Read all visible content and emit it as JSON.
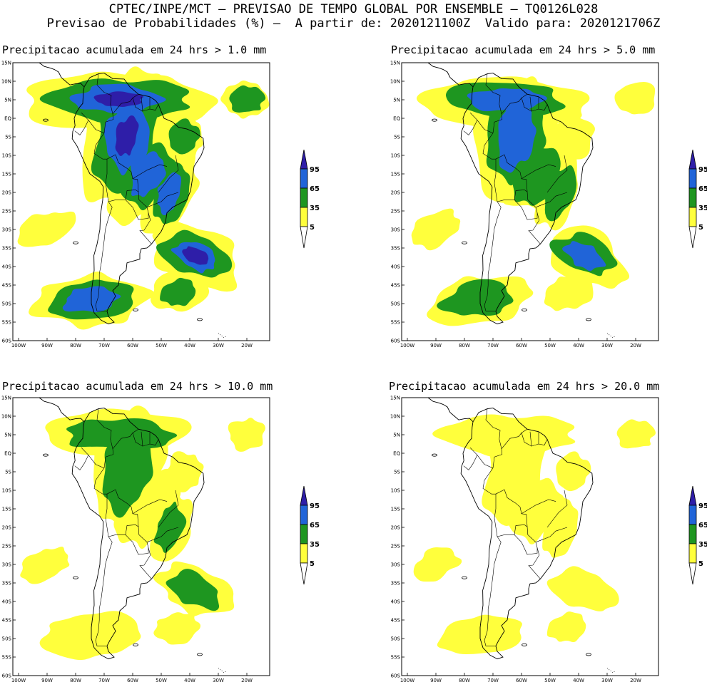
{
  "header": {
    "line1": "CPTEC/INPE/MCT – PREVISAO DE TEMPO GLOBAL POR ENSEMBLE – TQ0126L028",
    "line2": "Previsao de Probabilidades (%) –  A partir de: 2020121100Z  Valido para: 2020121706Z"
  },
  "colors": {
    "p5": "#ffff3c",
    "p35": "#1e9620",
    "p65": "#2064d8",
    "p95": "#2e1ea8",
    "land": "#ffffff",
    "outline": "#000000"
  },
  "axes": {
    "lat_ticks": [
      "15N",
      "10N",
      "5N",
      "EQ",
      "5S",
      "10S",
      "15S",
      "20S",
      "25S",
      "30S",
      "35S",
      "40S",
      "45S",
      "50S",
      "55S",
      "60S"
    ],
    "lon_ticks": [
      "100W",
      "90W",
      "80W",
      "70W",
      "60W",
      "50W",
      "40W",
      "30W",
      "20W"
    ]
  },
  "colorbar": {
    "labels": [
      "95",
      "65",
      "35",
      "5"
    ]
  },
  "panels": [
    {
      "title": "Precipitacao acumulada em 24 hrs > 1.0 mm",
      "intensity": 1.0
    },
    {
      "title": "Precipitacao acumulada em 24 hrs > 5.0 mm",
      "intensity": 0.72
    },
    {
      "title": "Precipitacao acumulada em 24 hrs > 10.0 mm",
      "intensity": 0.5
    },
    {
      "title": "Precipitacao acumulada em 24 hrs > 20.0 mm",
      "intensity": 0.3
    }
  ]
}
